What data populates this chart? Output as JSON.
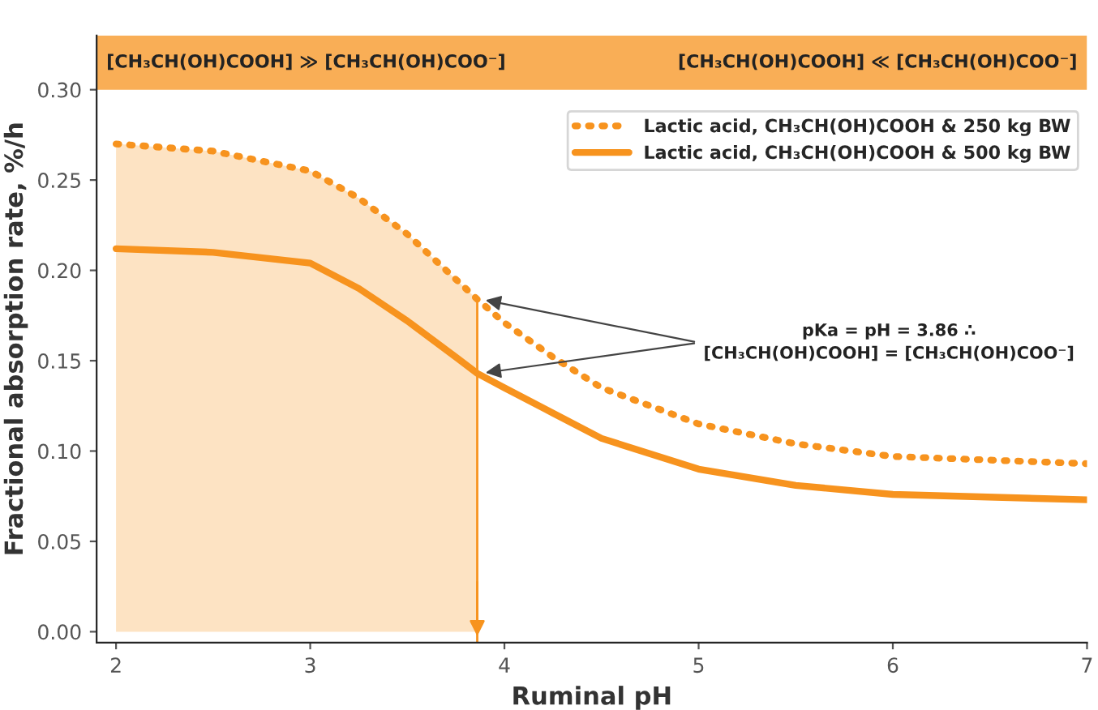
{
  "chart_data": {
    "type": "line",
    "xlabel": "Ruminal pH",
    "ylabel": "Fractional absorption rate, %/h",
    "x": [
      2,
      2.5,
      3,
      3.25,
      3.5,
      3.75,
      3.86,
      4,
      4.25,
      4.5,
      5,
      5.5,
      6,
      7
    ],
    "series": [
      {
        "name": "Lactic acid, CH₃CH(OH)COOH & 250 kg BW",
        "color": "#f7931e",
        "line_style": "dotted",
        "values": [
          0.27,
          0.266,
          0.255,
          0.24,
          0.22,
          0.195,
          0.184,
          0.171,
          0.152,
          0.135,
          0.115,
          0.104,
          0.097,
          0.093
        ]
      },
      {
        "name": "Lactic acid, CH₃CH(OH)COOH & 500 kg BW",
        "color": "#f7931e",
        "line_style": "solid",
        "values": [
          0.212,
          0.21,
          0.204,
          0.19,
          0.172,
          0.152,
          0.143,
          0.135,
          0.121,
          0.107,
          0.09,
          0.081,
          0.076,
          0.073
        ]
      },
      {
        "type": "area",
        "color": "#fde3c3",
        "x": [
          2,
          2.5,
          3,
          3.25,
          3.5,
          3.75,
          3.86
        ],
        "values": [
          0.27,
          0.266,
          0.255,
          0.24,
          0.22,
          0.195,
          0.184
        ]
      }
    ],
    "xlim": [
      1.9,
      7
    ],
    "ylim": [
      -0.006,
      0.33
    ],
    "xticks": [
      2,
      3,
      4,
      5,
      6,
      7
    ],
    "yticks": [
      {
        "value": 0,
        "label": "0.00"
      },
      {
        "value": 0.05,
        "label": "0.05"
      },
      {
        "value": 0.1,
        "label": "0.10"
      },
      {
        "value": 0.15,
        "label": "0.15"
      },
      {
        "value": 0.2,
        "label": "0.20"
      },
      {
        "value": 0.25,
        "label": "0.25"
      },
      {
        "value": 0.3,
        "label": "0.30"
      }
    ],
    "ref_lines": [
      {
        "axis": "x",
        "value": 3.86,
        "color": "#f7931e"
      }
    ],
    "bands": [
      {
        "axis": "y",
        "from": 0.3,
        "to": 0.33,
        "color": "#f7931e"
      }
    ],
    "annotations": [
      "[CH₃CH(OH)COOH] ≫ [CH₃CH(OH)COO⁻]",
      "[CH₃CH(OH)COOH] ≪ [CH₃CH(OH)COO⁻]",
      {
        "text": "pKa = pH = 3.86 ∴\n[CH₃CH(OH)COOH] = [CH₃CH(OH)COO⁻]",
        "x": 3.86,
        "y": 0.184
      }
    ],
    "grid": false,
    "legend": "top right"
  }
}
